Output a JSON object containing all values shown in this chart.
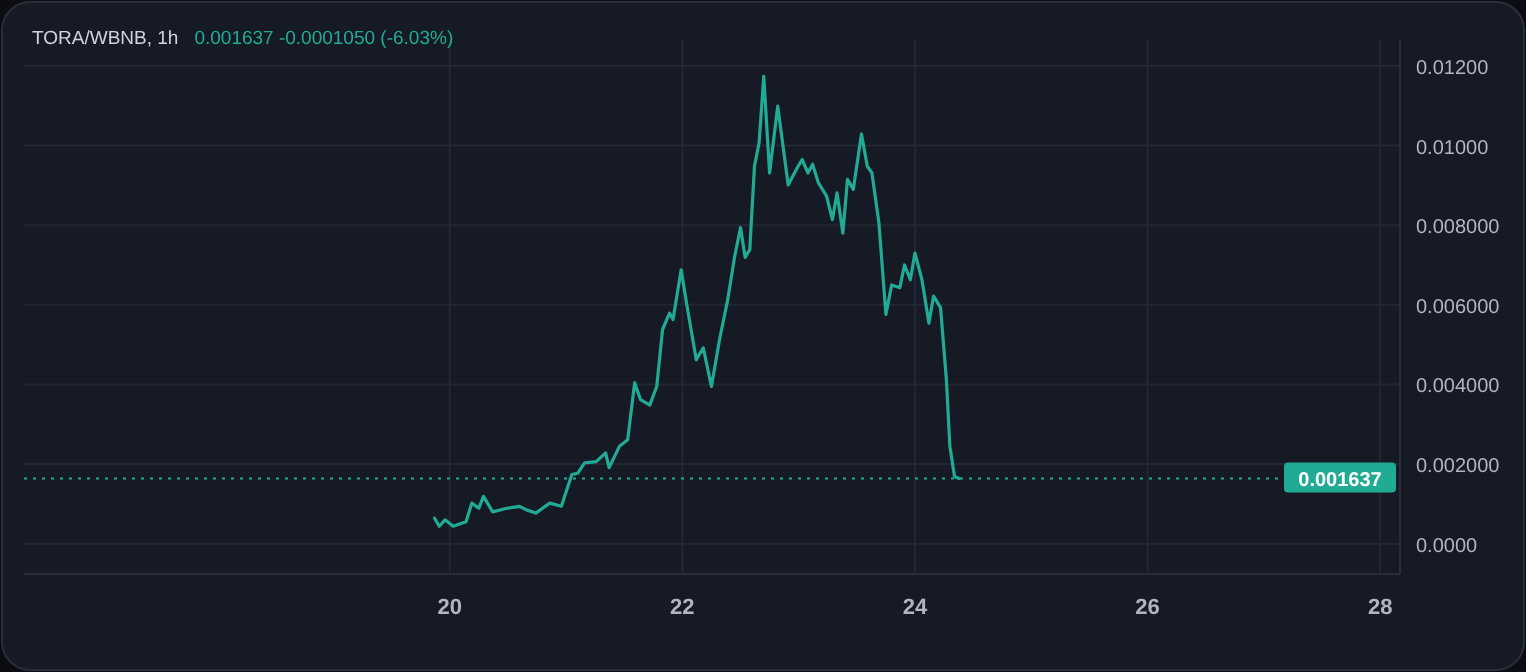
{
  "chart_data": {
    "type": "line",
    "title": "TORA/WBNB, 1h",
    "annotations": [
      "0.001637  -0.0001050 (-6.03%)"
    ],
    "xlim": [
      16.34,
      28.17
    ],
    "xticks": [
      20,
      22,
      24,
      26,
      28
    ],
    "ylim": [
      -0.00076,
      0.01265
    ],
    "yticks": [
      {
        "value": 0,
        "label": "0.0000"
      },
      {
        "value": 0.002,
        "label": "0.002000"
      },
      {
        "value": 0.004,
        "label": "0.004000"
      },
      {
        "value": 0.006,
        "label": "0.006000"
      },
      {
        "value": 0.008,
        "label": "0.008000"
      },
      {
        "value": 0.01,
        "label": "0.01000"
      },
      {
        "value": 0.012,
        "label": "0.01200"
      }
    ],
    "grid": true,
    "marker": "none",
    "line_style": "solid",
    "ref_lines": [
      {
        "axis": "y",
        "value": 0.001637,
        "label": "0.001637",
        "color": "#22ab94",
        "line_style": "dotted"
      }
    ],
    "series": [
      {
        "color": "#22ab94",
        "x": [
          19.87,
          19.91,
          19.96,
          20.03,
          20.14,
          20.19,
          20.25,
          20.29,
          20.37,
          20.49,
          20.6,
          20.66,
          20.74,
          20.86,
          20.96,
          21.05,
          21.1,
          21.16,
          21.26,
          21.34,
          21.37,
          21.46,
          21.53,
          21.59,
          21.64,
          21.72,
          21.78,
          21.83,
          21.89,
          21.92,
          21.99,
          22.04,
          22.12,
          22.18,
          22.25,
          22.32,
          22.39,
          22.45,
          22.5,
          22.54,
          22.58,
          22.62,
          22.66,
          22.7,
          22.75,
          22.82,
          22.91,
          22.98,
          23.03,
          23.08,
          23.12,
          23.17,
          23.24,
          23.29,
          23.33,
          23.38,
          23.42,
          23.47,
          23.54,
          23.59,
          23.63,
          23.69,
          23.75,
          23.8,
          23.87,
          23.91,
          23.96,
          24.0,
          24.06,
          24.12,
          24.16,
          24.22,
          24.27,
          24.3,
          24.34,
          24.38
        ],
        "values": [
          0.00064,
          0.00044,
          0.0006,
          0.00044,
          0.00055,
          0.00102,
          0.00089,
          0.00119,
          0.0008,
          0.00089,
          0.00094,
          0.00085,
          0.00077,
          0.00102,
          0.00094,
          0.00174,
          0.00177,
          0.00203,
          0.00206,
          0.00228,
          0.00191,
          0.00245,
          0.00261,
          0.00404,
          0.00362,
          0.00348,
          0.00395,
          0.00538,
          0.00579,
          0.00563,
          0.00688,
          0.00597,
          0.00462,
          0.00492,
          0.00395,
          0.00513,
          0.00613,
          0.00722,
          0.00794,
          0.00719,
          0.00739,
          0.00948,
          0.01007,
          0.01174,
          0.00931,
          0.01099,
          0.00901,
          0.0094,
          0.00965,
          0.00931,
          0.00953,
          0.00906,
          0.00873,
          0.00814,
          0.00881,
          0.0078,
          0.00915,
          0.0089,
          0.01029,
          0.00948,
          0.00931,
          0.00806,
          0.00576,
          0.0065,
          0.00643,
          0.007,
          0.00663,
          0.0073,
          0.00663,
          0.00554,
          0.00622,
          0.00593,
          0.00412,
          0.00245,
          0.00169,
          0.00164
        ]
      }
    ]
  }
}
